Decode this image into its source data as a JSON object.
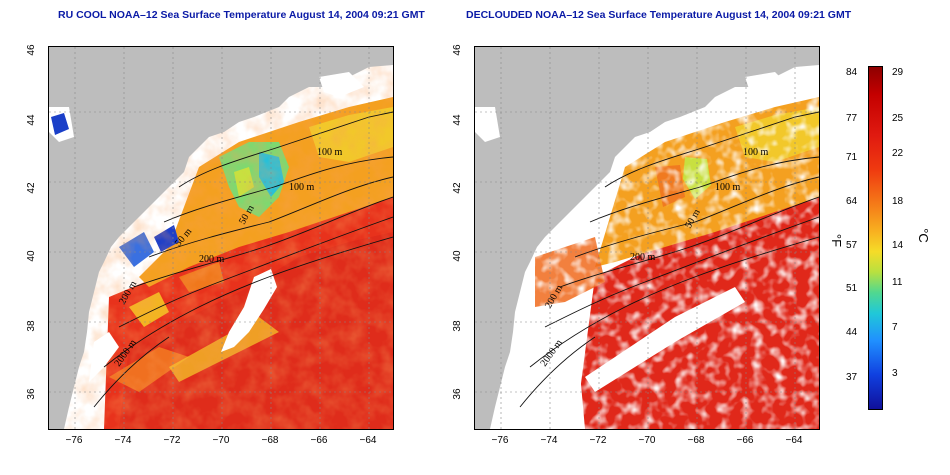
{
  "titles": {
    "left": "RU COOL NOAA–12 Sea Surface Temperature August 14, 2004 09:21 GMT",
    "right": "DECLOUDED NOAA–12 Sea Surface Temperature August 14, 2004 09:21 GMT"
  },
  "axes": {
    "lat_ticks": [
      "46",
      "44",
      "42",
      "40",
      "38",
      "36"
    ],
    "lon_ticks": [
      "−76",
      "−74",
      "−72",
      "−70",
      "−68",
      "−66",
      "−64"
    ]
  },
  "contour_labels": {
    "left": [
      "100 m",
      "100 m",
      "50 m",
      "50 m",
      "200 m",
      "200 m",
      "2000 m"
    ],
    "right": [
      "100 m",
      "100 m",
      "50 m",
      "200 m",
      "200 m",
      "2000 m"
    ]
  },
  "colorbar": {
    "fahrenheit_ticks": [
      "84",
      "77",
      "71",
      "64",
      "57",
      "51",
      "44",
      "37"
    ],
    "celsius_ticks": [
      "29",
      "25",
      "22",
      "18",
      "14",
      "11",
      "7",
      "3"
    ],
    "fahrenheit_unit": "°F",
    "celsius_unit": "°C",
    "colors": [
      "#8e0000",
      "#e01a10",
      "#f57a18",
      "#f5dc28",
      "#50d890",
      "#20c8d8",
      "#2090ff",
      "#10109a"
    ]
  },
  "colors": {
    "land": "#bdbdbd",
    "cloud": "#ffffff",
    "warm": "#e8321c",
    "mid": "#f4a020",
    "title": "#0a1aa6"
  }
}
